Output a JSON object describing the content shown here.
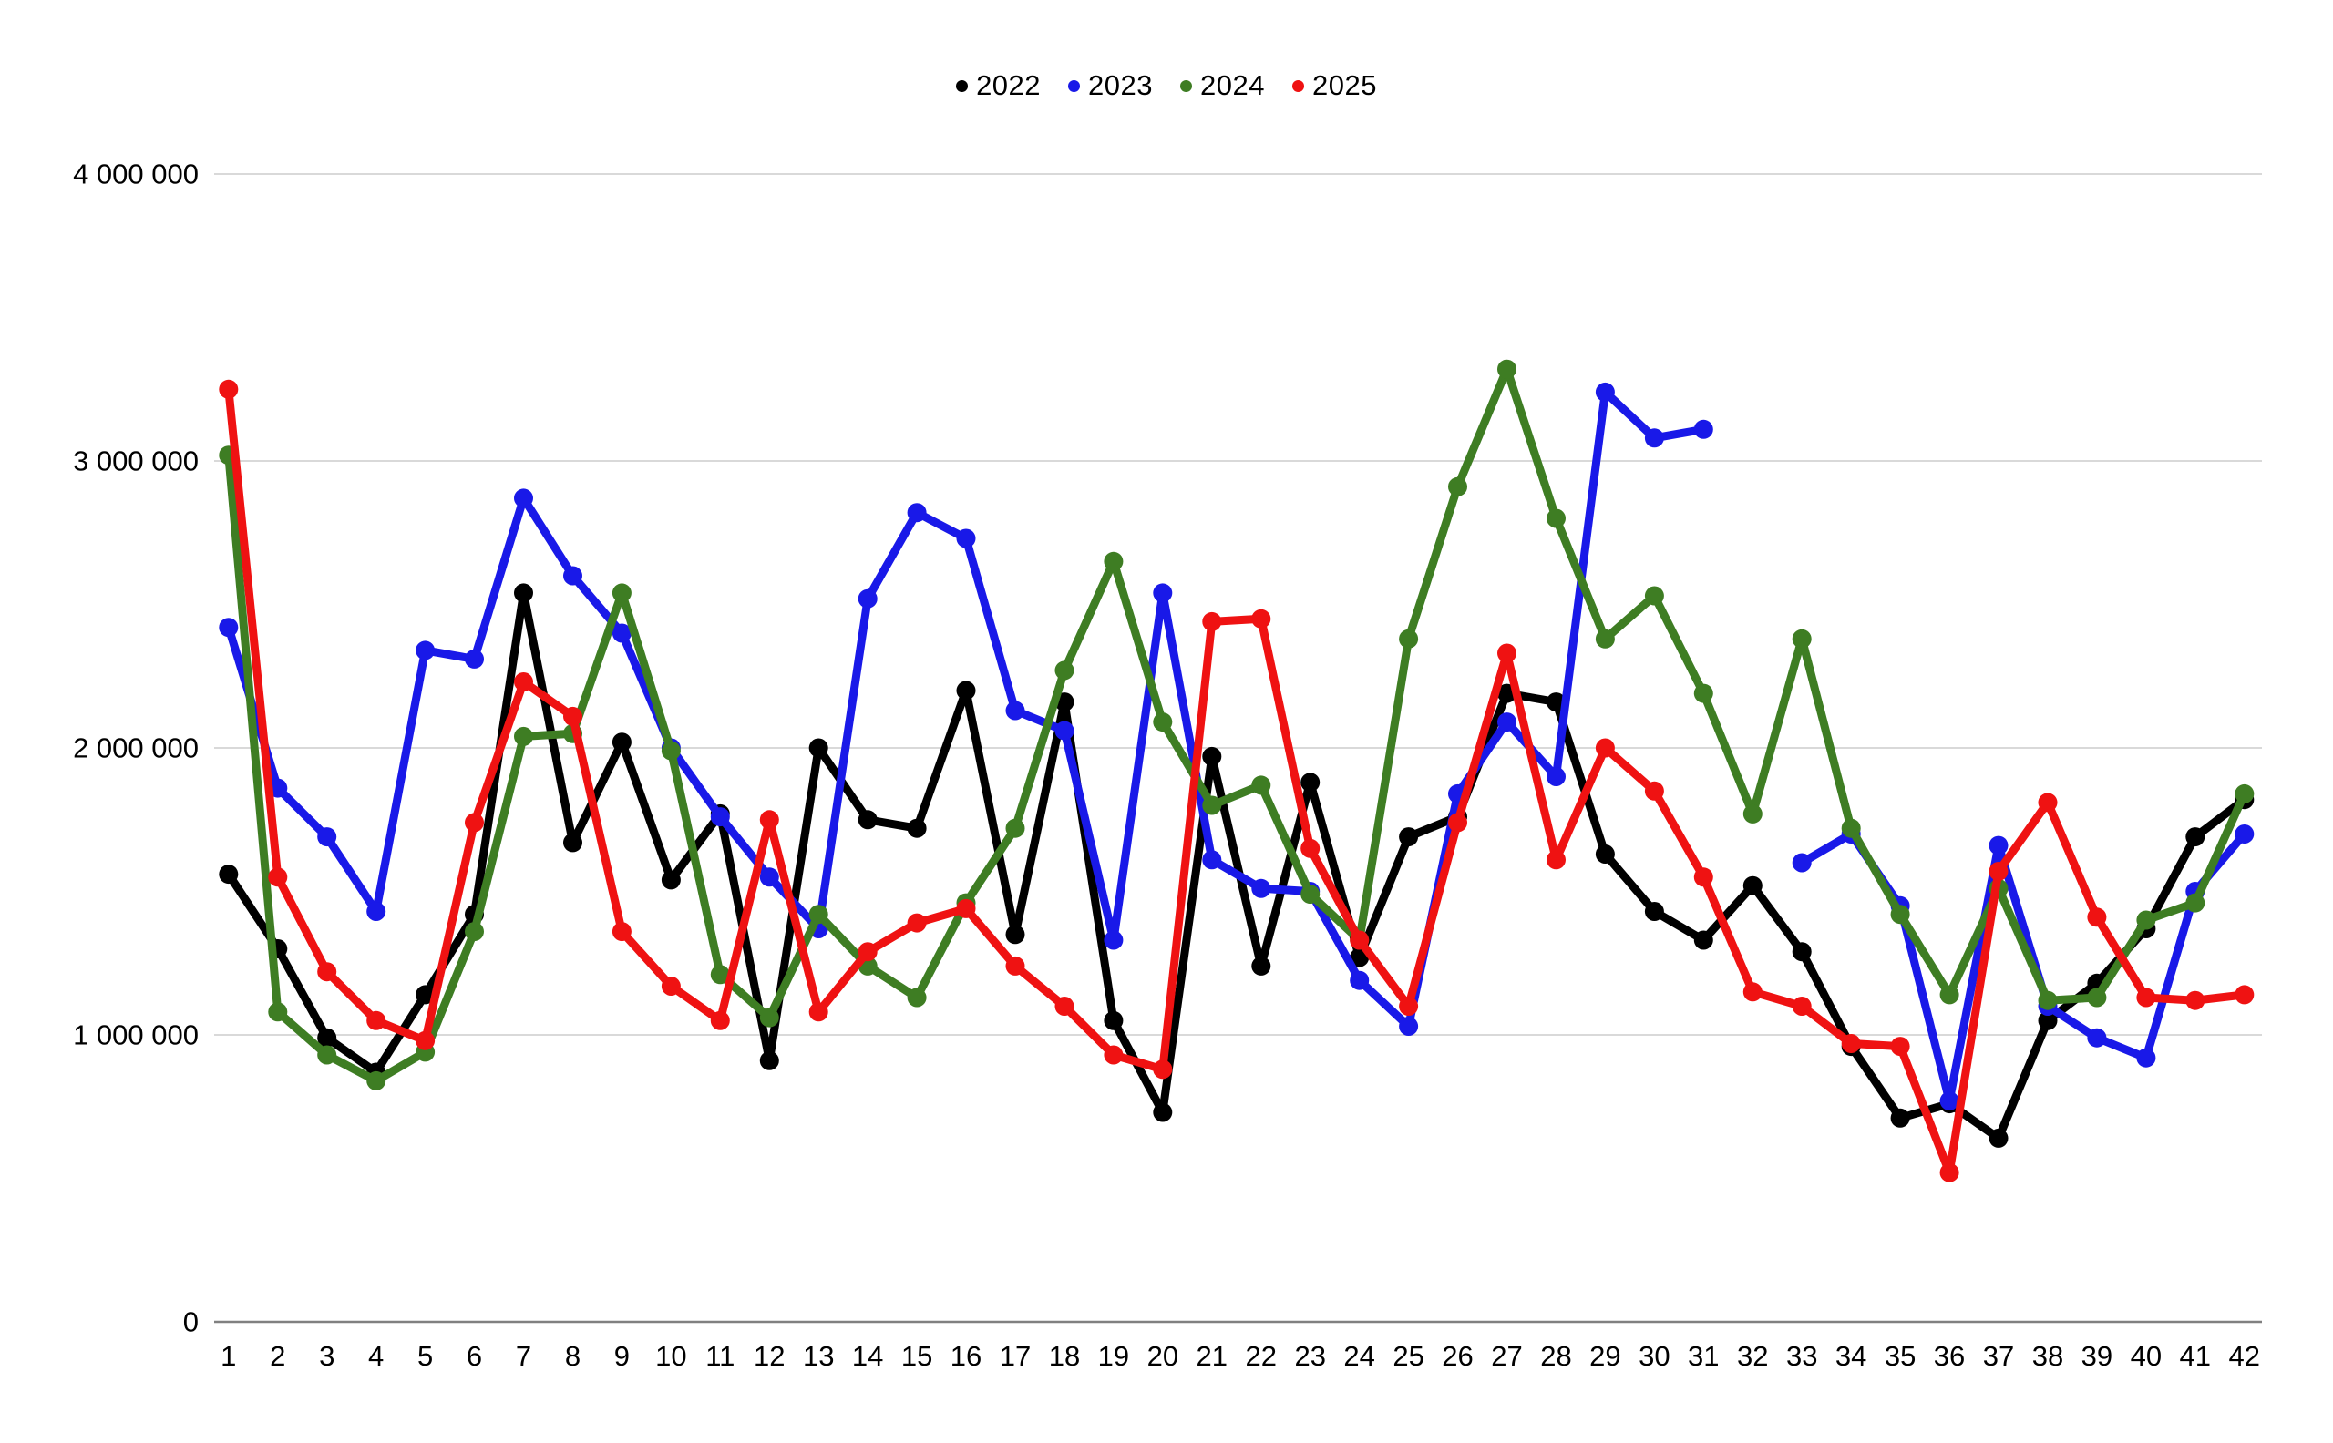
{
  "chart_data": {
    "type": "line",
    "title": "",
    "xlabel": "",
    "ylabel": "",
    "x": [
      1,
      2,
      3,
      4,
      5,
      6,
      7,
      8,
      9,
      10,
      11,
      12,
      13,
      14,
      15,
      16,
      17,
      18,
      19,
      20,
      21,
      22,
      23,
      24,
      25,
      26,
      27,
      28,
      29,
      30,
      31,
      32,
      33,
      34,
      35,
      36,
      37,
      38,
      39,
      40,
      41,
      42
    ],
    "series": [
      {
        "name": "2022",
        "color": "#000000",
        "values": [
          1560000,
          1300000,
          990000,
          870000,
          1140000,
          1420000,
          2540000,
          1670000,
          2020000,
          1540000,
          1770000,
          910000,
          2000000,
          1750000,
          1720000,
          2200000,
          1350000,
          2160000,
          1050000,
          730000,
          1970000,
          1240000,
          1880000,
          1270000,
          1690000,
          1760000,
          2190000,
          2160000,
          1630000,
          1430000,
          1330000,
          1520000,
          1290000,
          960000,
          710000,
          760000,
          640000,
          1050000,
          1180000,
          1370000,
          1690000,
          1820000
        ]
      },
      {
        "name": "2023",
        "color": "#1919e8",
        "values": [
          2420000,
          1860000,
          1690000,
          1430000,
          2340000,
          2310000,
          2870000,
          2600000,
          2400000,
          2000000,
          1760000,
          1550000,
          1370000,
          2520000,
          2820000,
          2730000,
          2130000,
          2060000,
          1330000,
          2540000,
          1610000,
          1510000,
          1500000,
          1190000,
          1030000,
          1840000,
          2090000,
          1900000,
          3240000,
          3080000,
          3110000,
          null,
          1600000,
          1700000,
          1450000,
          770000,
          1660000,
          1100000,
          990000,
          920000,
          1500000,
          1700000
        ]
      },
      {
        "name": "2024",
        "color": "#3e7d23",
        "values": [
          3020000,
          1080000,
          930000,
          840000,
          940000,
          1360000,
          2040000,
          2050000,
          2540000,
          1990000,
          1210000,
          1060000,
          1420000,
          1240000,
          1130000,
          1460000,
          1720000,
          2270000,
          2650000,
          2090000,
          1800000,
          1870000,
          1490000,
          1330000,
          2380000,
          2910000,
          3320000,
          2800000,
          2380000,
          2530000,
          2190000,
          1770000,
          2380000,
          1720000,
          1420000,
          1140000,
          1510000,
          1120000,
          1130000,
          1400000,
          1460000,
          1840000
        ]
      },
      {
        "name": "2025",
        "color": "#ef1212",
        "values": [
          3250000,
          1550000,
          1220000,
          1050000,
          980000,
          1740000,
          2230000,
          2110000,
          1360000,
          1170000,
          1050000,
          1750000,
          1080000,
          1290000,
          1390000,
          1440000,
          1240000,
          1100000,
          930000,
          880000,
          2440000,
          2450000,
          1650000,
          1330000,
          1100000,
          1740000,
          2330000,
          1610000,
          2000000,
          1850000,
          1550000,
          1150000,
          1100000,
          970000,
          960000,
          520000,
          1570000,
          1810000,
          1410000,
          1130000,
          1120000,
          1140000
        ]
      }
    ],
    "ylim": [
      0,
      4000000
    ],
    "y_ticks": [
      0,
      1000000,
      2000000,
      3000000,
      4000000
    ],
    "y_tick_labels": [
      "0",
      "1 000 000",
      "2 000 000",
      "3 000 000",
      "4 000 000"
    ],
    "x_tick_labels": [
      "1",
      "2",
      "3",
      "4",
      "5",
      "6",
      "7",
      "8",
      "9",
      "10",
      "11",
      "12",
      "13",
      "14",
      "15",
      "16",
      "17",
      "18",
      "19",
      "20",
      "21",
      "22",
      "23",
      "24",
      "25",
      "26",
      "27",
      "28",
      "29",
      "30",
      "31",
      "32",
      "33",
      "34",
      "35",
      "36",
      "37",
      "38",
      "39",
      "40",
      "41",
      "42"
    ],
    "grid": "horizontal",
    "legend_position": "top-center",
    "marker": "circle",
    "colors": {
      "grid_line": "#d9d9d9",
      "axis_line": "#808080",
      "tick_text": "#000000",
      "background": "#ffffff"
    }
  }
}
